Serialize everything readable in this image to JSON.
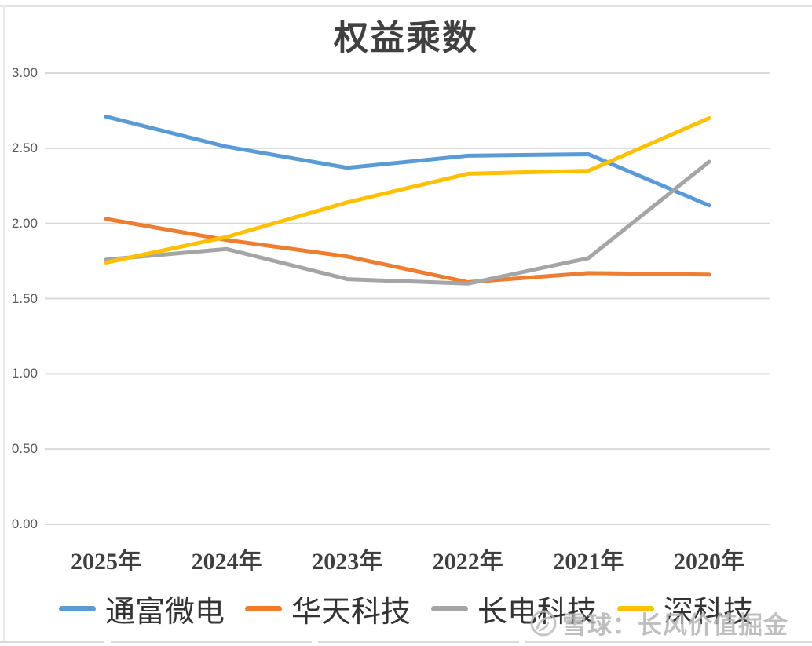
{
  "chart_data": {
    "type": "line",
    "title": "权益乘数",
    "categories": [
      "2025年",
      "2024年",
      "2023年",
      "2022年",
      "2021年",
      "2020年"
    ],
    "series": [
      {
        "name": "通富微电",
        "color": "#5B9BD5",
        "values": [
          2.71,
          2.51,
          2.37,
          2.45,
          2.46,
          2.12
        ]
      },
      {
        "name": "华天科技",
        "color": "#ED7D31",
        "values": [
          2.03,
          1.89,
          1.78,
          1.61,
          1.67,
          1.66
        ]
      },
      {
        "name": "长电科技",
        "color": "#A5A5A5",
        "values": [
          1.76,
          1.83,
          1.63,
          1.6,
          1.77,
          2.41
        ]
      },
      {
        "name": "深科技",
        "color": "#FFC000",
        "values": [
          1.74,
          1.91,
          2.14,
          2.33,
          2.35,
          2.7
        ]
      }
    ],
    "y_axis": {
      "min": 0,
      "max": 3,
      "step": 0.5,
      "ticks": [
        "3.00",
        "2.50",
        "2.00",
        "1.50",
        "1.00",
        "0.50",
        "0.00"
      ]
    },
    "grid": true,
    "legend_position": "bottom"
  },
  "watermark": {
    "icon": "xueqiu-logo-icon",
    "text": "雪球：长风价值掘金"
  },
  "colors": {
    "grid": "#D9D9D9",
    "axis_text": "#595959",
    "title_text": "#404040",
    "category_text": "#3F3F3F",
    "watermark_text": "#B5B5B5",
    "frame_border": "#E3E3E3"
  }
}
